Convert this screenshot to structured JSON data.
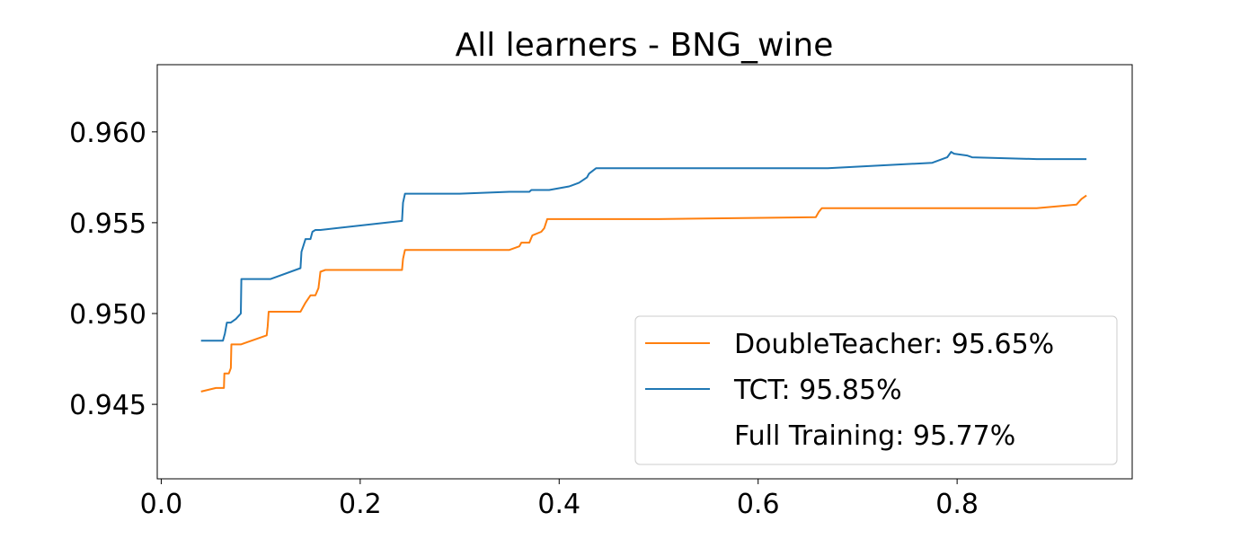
{
  "chart_data": {
    "type": "line",
    "title": "All learners - BNG_wine",
    "xlabel": "",
    "ylabel": "",
    "xlim": [
      -0.004,
      0.976
    ],
    "ylim": [
      0.9409,
      0.9637
    ],
    "xticks": [
      0.0,
      0.2,
      0.4,
      0.6,
      0.8
    ],
    "xtick_labels": [
      "0.0",
      "0.2",
      "0.4",
      "0.6",
      "0.8"
    ],
    "yticks": [
      0.945,
      0.95,
      0.955,
      0.96
    ],
    "ytick_labels": [
      "0.945",
      "0.950",
      "0.955",
      "0.960"
    ],
    "grid": false,
    "legend_position": "lower-right",
    "series": [
      {
        "name": "DoubleTeacher: 95.65%",
        "color": "#ff7f0e",
        "x": [
          0.04,
          0.055,
          0.063,
          0.0635,
          0.068,
          0.07,
          0.0705,
          0.08,
          0.106,
          0.107,
          0.108,
          0.14,
          0.145,
          0.15,
          0.155,
          0.158,
          0.16,
          0.165,
          0.242,
          0.243,
          0.245,
          0.35,
          0.36,
          0.362,
          0.37,
          0.373,
          0.382,
          0.385,
          0.388,
          0.5,
          0.658,
          0.661,
          0.664,
          0.88,
          0.92,
          0.925,
          0.93
        ],
        "y": [
          0.9457,
          0.9459,
          0.9459,
          0.9467,
          0.9467,
          0.947,
          0.9483,
          0.9483,
          0.9488,
          0.9493,
          0.9501,
          0.9501,
          0.9506,
          0.951,
          0.951,
          0.9514,
          0.9523,
          0.9524,
          0.9524,
          0.953,
          0.9535,
          0.9535,
          0.9537,
          0.9539,
          0.9539,
          0.9543,
          0.9545,
          0.9547,
          0.9552,
          0.9552,
          0.9553,
          0.9556,
          0.9558,
          0.9558,
          0.956,
          0.9563,
          0.9565
        ]
      },
      {
        "name": "TCT: 95.85%",
        "color": "#1f77b4",
        "x": [
          0.04,
          0.062,
          0.064,
          0.066,
          0.07,
          0.075,
          0.08,
          0.0805,
          0.083,
          0.11,
          0.14,
          0.141,
          0.145,
          0.15,
          0.152,
          0.155,
          0.16,
          0.242,
          0.243,
          0.245,
          0.3,
          0.35,
          0.352,
          0.36,
          0.37,
          0.372,
          0.39,
          0.41,
          0.42,
          0.428,
          0.43,
          0.437,
          0.5,
          0.65,
          0.67,
          0.775,
          0.79,
          0.794,
          0.797,
          0.81,
          0.815,
          0.88,
          0.93
        ],
        "y": [
          0.9485,
          0.9485,
          0.9489,
          0.9495,
          0.9495,
          0.9497,
          0.95,
          0.9519,
          0.9519,
          0.9519,
          0.9525,
          0.9534,
          0.9541,
          0.9541,
          0.9545,
          0.9546,
          0.9546,
          0.9551,
          0.9561,
          0.9566,
          0.9566,
          0.9567,
          0.9567,
          0.9567,
          0.9567,
          0.9568,
          0.9568,
          0.957,
          0.9572,
          0.9575,
          0.9577,
          0.958,
          0.958,
          0.958,
          0.958,
          0.9583,
          0.9586,
          0.9589,
          0.9588,
          0.9587,
          0.9586,
          0.9585,
          0.9585
        ]
      }
    ],
    "legend": [
      {
        "label": "DoubleTeacher: 95.65%",
        "color": "#ff7f0e"
      },
      {
        "label": "TCT: 95.85%",
        "color": "#1f77b4"
      },
      {
        "label": "Full Training: 95.77%",
        "color": "none"
      }
    ]
  }
}
